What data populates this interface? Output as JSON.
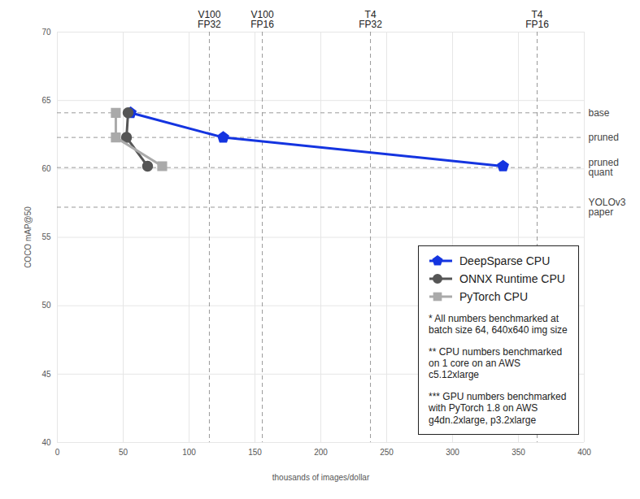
{
  "chart_data": {
    "type": "line",
    "x_label": "thousands of images/dollar",
    "y_label": "COCO mAP@50",
    "xlim": [
      0,
      400
    ],
    "xticks": [
      0,
      50,
      100,
      150,
      200,
      250,
      300,
      350,
      400
    ],
    "ylim": [
      40,
      70
    ],
    "yticks": [
      40,
      45,
      50,
      55,
      60,
      65,
      70
    ],
    "grid": true,
    "legend": "lower right",
    "series": [
      {
        "name": "DeepSparse CPU",
        "color": "#1434e0",
        "marker": "pentagon",
        "x": [
          55.6,
          125.9,
          338.3
        ],
        "values": [
          64.1,
          62.3,
          60.2
        ]
      },
      {
        "name": "ONNX Runtime CPU",
        "color": "#555555",
        "marker": "circle",
        "x": [
          53.7,
          52.5,
          68.5
        ],
        "values": [
          64.1,
          62.3,
          60.2
        ]
      },
      {
        "name": "PyTorch CPU",
        "color": "#aaaaaa",
        "marker": "square",
        "x": [
          44.4,
          44.4,
          79.6
        ],
        "values": [
          64.1,
          62.3,
          60.2
        ]
      }
    ],
    "annotations": [
      {
        "text": "V100\nFP32",
        "x": 115.4
      },
      {
        "text": "V100\nFP16",
        "x": 155.6
      },
      {
        "text": "T4\nFP32",
        "x": 237.7
      },
      {
        "text": "T4\nFP16",
        "x": 364.2
      },
      {
        "text": "base",
        "y": 64.1
      },
      {
        "text": "pruned",
        "y": 62.3
      },
      {
        "text": "pruned\nquant",
        "y": 60.1
      },
      {
        "text": "YOLOv3\npaper",
        "y": 57.2
      },
      {
        "text": "* All numbers benchmarked at\nbatch size 64, 640x640 img size"
      },
      {
        "text": "** CPU numbers benchmarked\non 1 core on an AWS\nc5.12xlarge"
      },
      {
        "text": "*** GPU numbers benchmarked\nwith PyTorch 1.8 on AWS\ng4dn.2xlarge, p3.2xlarge"
      }
    ]
  }
}
